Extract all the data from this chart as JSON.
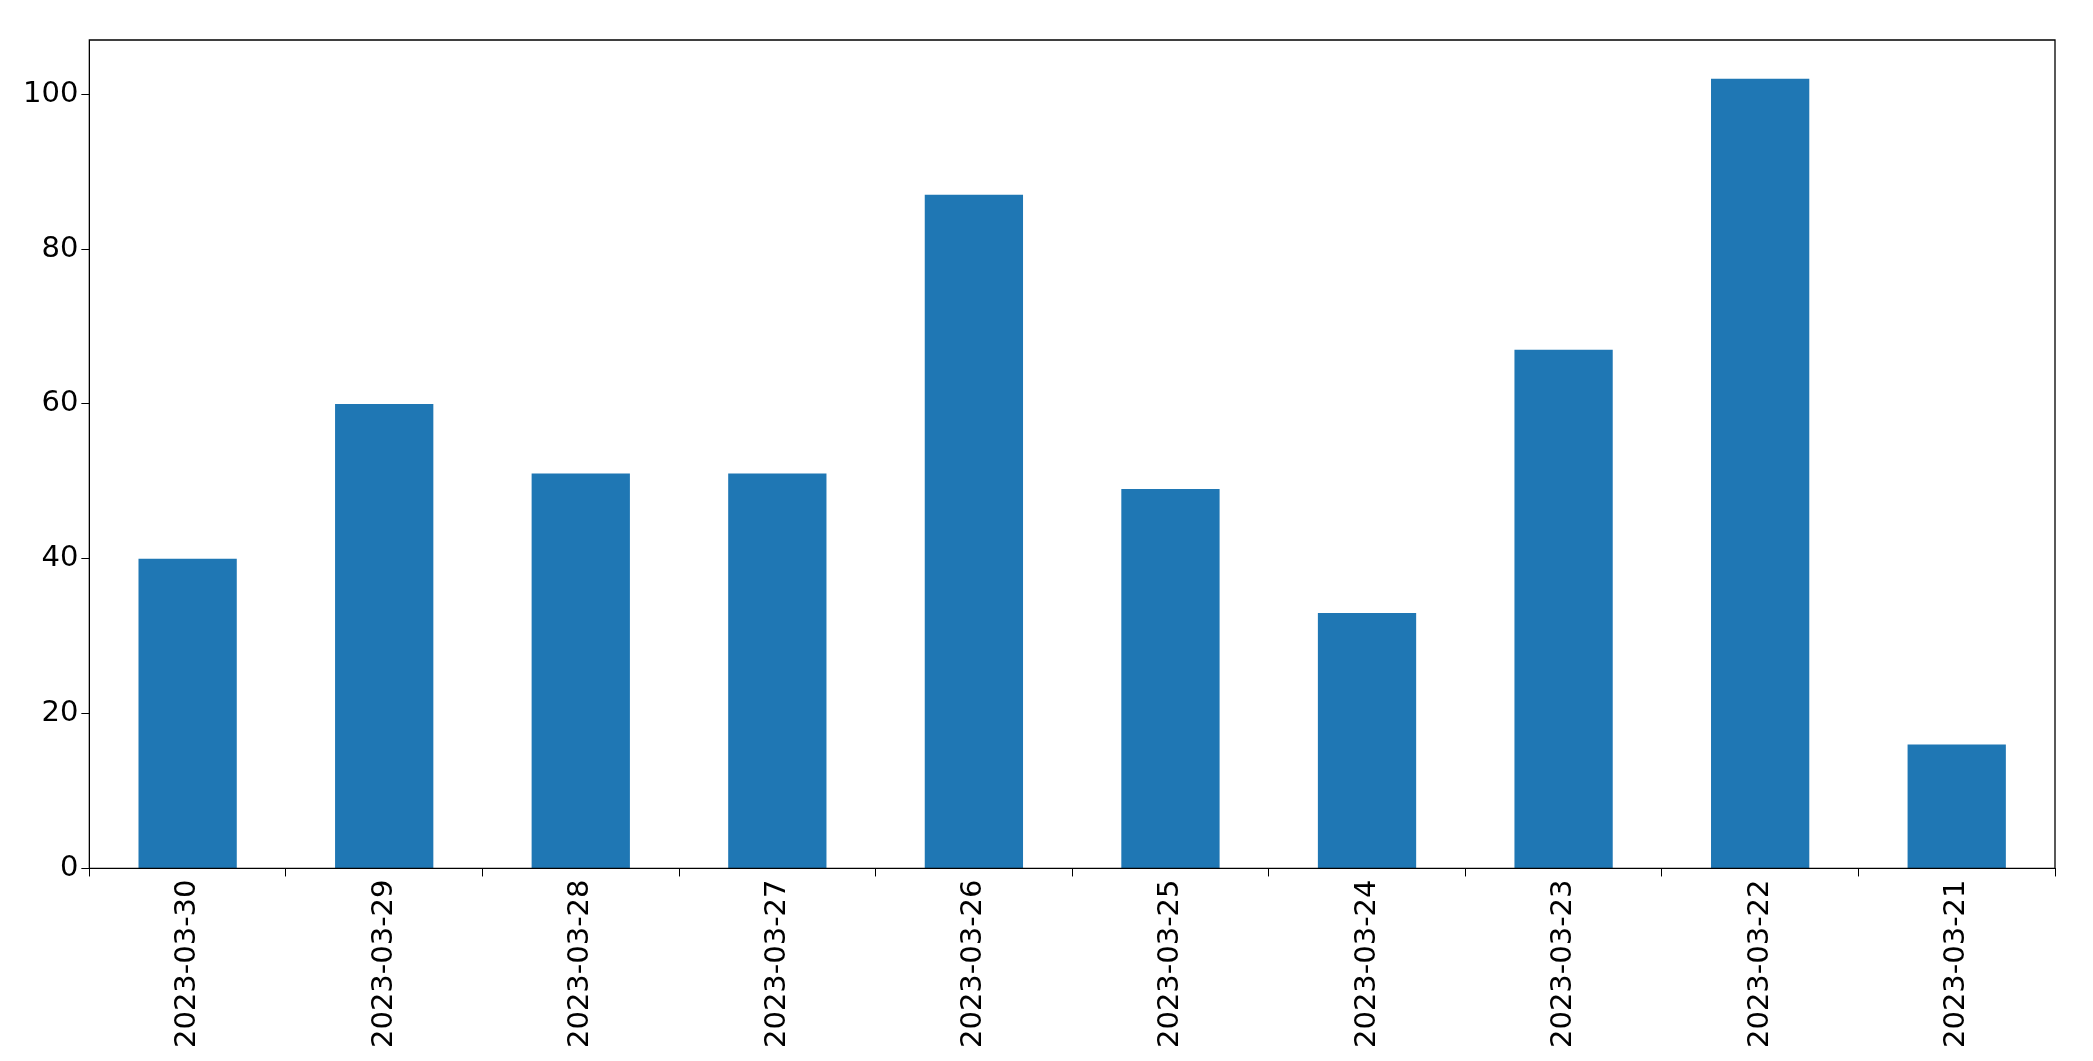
{
  "chart_data": {
    "type": "bar",
    "categories": [
      "2023-03-30",
      "2023-03-29",
      "2023-03-28",
      "2023-03-27",
      "2023-03-26",
      "2023-03-25",
      "2023-03-24",
      "2023-03-23",
      "2023-03-22",
      "2023-03-21"
    ],
    "values": [
      40,
      60,
      51,
      51,
      87,
      49,
      33,
      67,
      102,
      16
    ],
    "color": "#1f77b4",
    "ylim": [
      0,
      107
    ],
    "yticks": [
      0,
      20,
      40,
      60,
      80,
      100
    ],
    "grid": false,
    "legend": false
  }
}
